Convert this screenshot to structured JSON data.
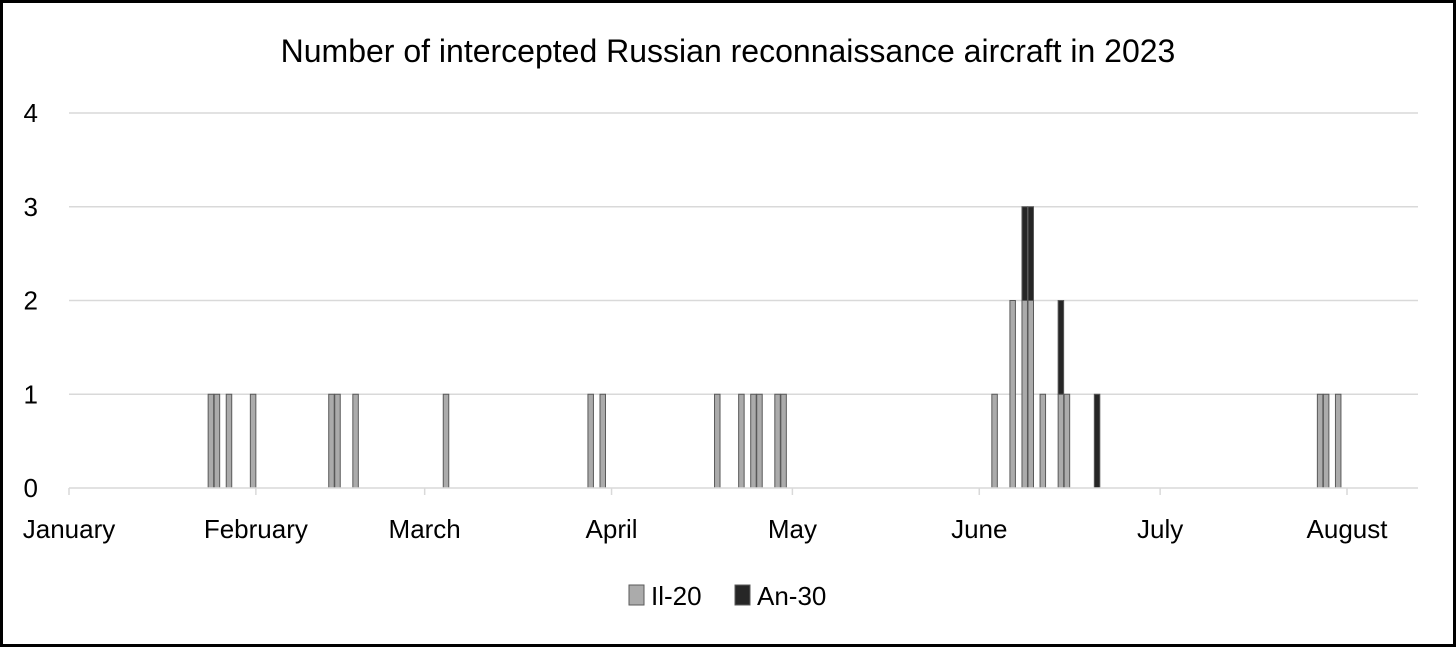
{
  "chart_data": {
    "type": "bar",
    "stacked": true,
    "title": "Number of intercepted Russian reconnaissance aircraft in 2023",
    "xlabel": "",
    "ylabel": "",
    "ylim": [
      0,
      4
    ],
    "y_ticks": [
      "0",
      "1",
      "2",
      "3",
      "4"
    ],
    "x_ticks": [
      {
        "label": "January",
        "date": "2023-01-01"
      },
      {
        "label": "February",
        "date": "2023-02-01"
      },
      {
        "label": "March",
        "date": "2023-03-01"
      },
      {
        "label": "April",
        "date": "2023-04-01"
      },
      {
        "label": "May",
        "date": "2023-05-01"
      },
      {
        "label": "June",
        "date": "2023-06-01"
      },
      {
        "label": "July",
        "date": "2023-07-01"
      },
      {
        "label": "August",
        "date": "2023-08-01"
      }
    ],
    "grid": true,
    "legend_position": "bottom",
    "series": [
      {
        "name": "Il-20",
        "color": "#ababab",
        "points": [
          {
            "date": "2023-01-24",
            "value": 1
          },
          {
            "date": "2023-01-25",
            "value": 1
          },
          {
            "date": "2023-01-27",
            "value": 1
          },
          {
            "date": "2023-01-31",
            "value": 1
          },
          {
            "date": "2023-02-13",
            "value": 1
          },
          {
            "date": "2023-02-14",
            "value": 1
          },
          {
            "date": "2023-02-17",
            "value": 1
          },
          {
            "date": "2023-03-04",
            "value": 1
          },
          {
            "date": "2023-03-28",
            "value": 1
          },
          {
            "date": "2023-03-30",
            "value": 1
          },
          {
            "date": "2023-04-18",
            "value": 1
          },
          {
            "date": "2023-04-22",
            "value": 1
          },
          {
            "date": "2023-04-24",
            "value": 1
          },
          {
            "date": "2023-04-25",
            "value": 1
          },
          {
            "date": "2023-04-28",
            "value": 1
          },
          {
            "date": "2023-04-29",
            "value": 1
          },
          {
            "date": "2023-06-03",
            "value": 1
          },
          {
            "date": "2023-06-06",
            "value": 2
          },
          {
            "date": "2023-06-08",
            "value": 2
          },
          {
            "date": "2023-06-09",
            "value": 2
          },
          {
            "date": "2023-06-11",
            "value": 1
          },
          {
            "date": "2023-06-14",
            "value": 1
          },
          {
            "date": "2023-06-15",
            "value": 1
          },
          {
            "date": "2023-07-27",
            "value": 1
          },
          {
            "date": "2023-07-28",
            "value": 1
          },
          {
            "date": "2023-07-30",
            "value": 1
          }
        ]
      },
      {
        "name": "An-30",
        "color": "#262626",
        "points": [
          {
            "date": "2023-06-08",
            "value": 1
          },
          {
            "date": "2023-06-09",
            "value": 1
          },
          {
            "date": "2023-06-14",
            "value": 1
          },
          {
            "date": "2023-06-20",
            "value": 1
          }
        ]
      }
    ]
  }
}
